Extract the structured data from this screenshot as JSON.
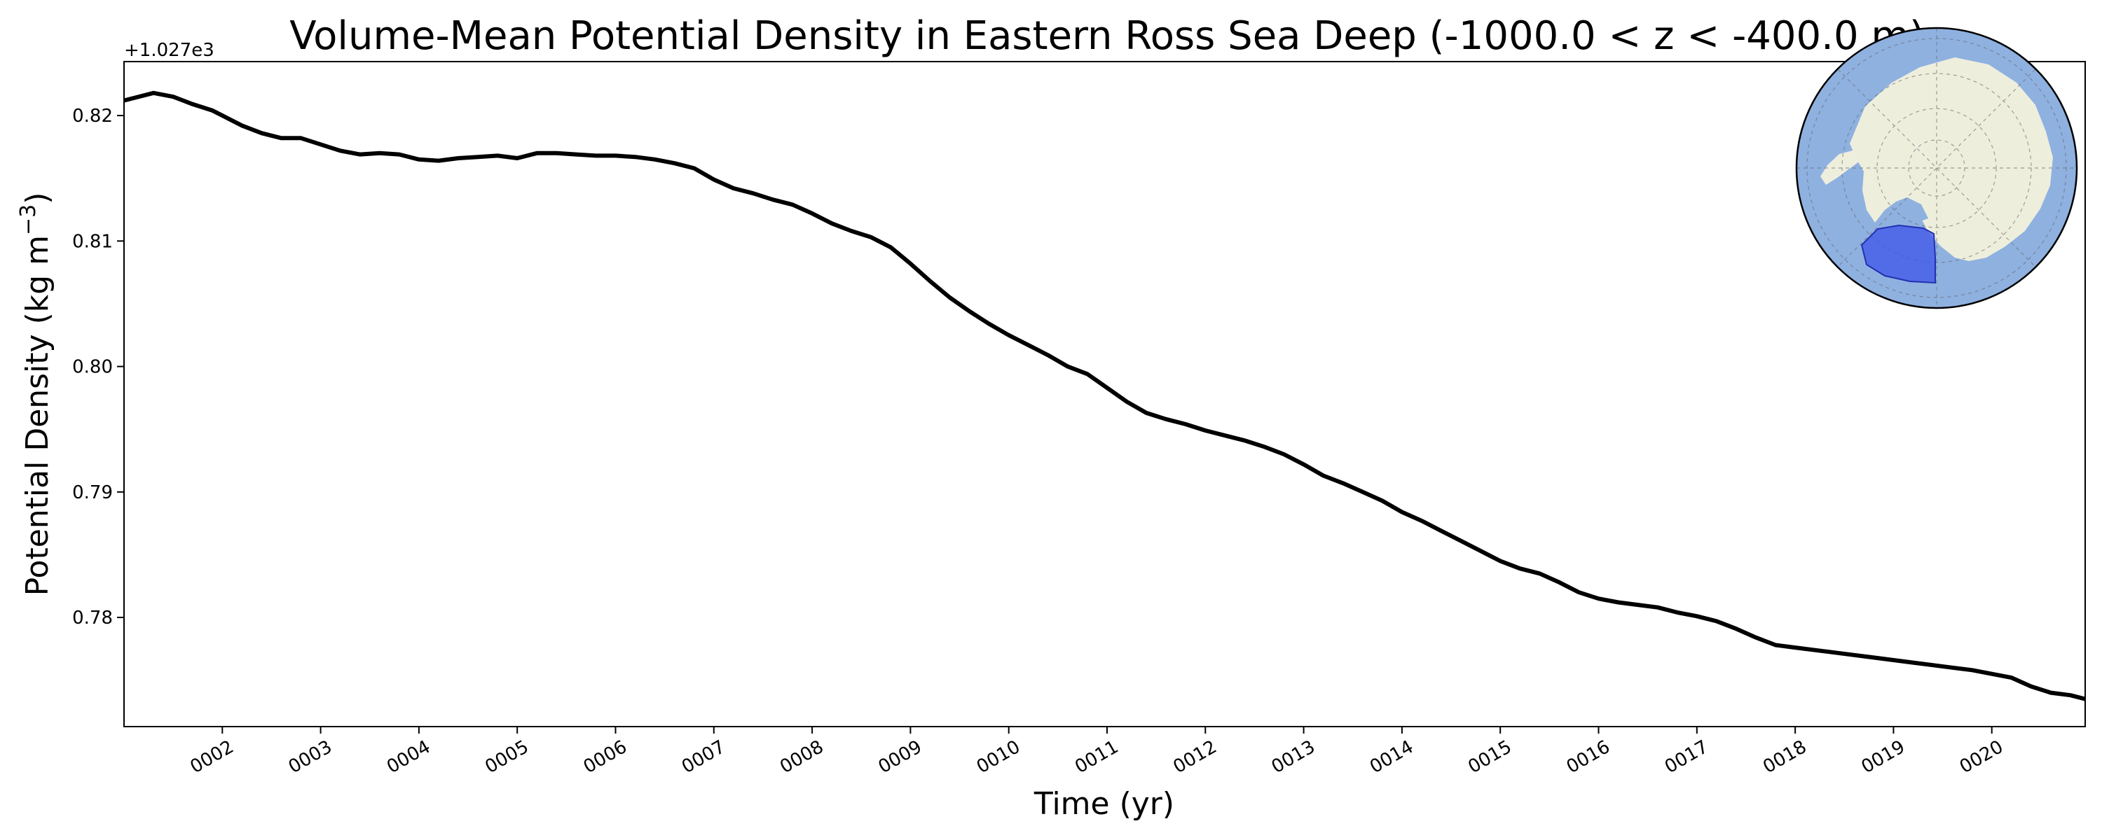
{
  "chart_data": {
    "type": "line",
    "title": "Volume-Mean Potential Density in Eastern Ross Sea Deep (-1000.0 < z < -400.0 m)",
    "xlabel": "Time (yr)",
    "ylabel_main": "Potential Density (kg m",
    "ylabel_exp": "−3",
    "ylabel_close": ")",
    "y_offset_text": "+1.027e3",
    "xlim": [
      1.0,
      20.95
    ],
    "ylim": [
      0.7713,
      0.8243
    ],
    "x_ticks": [
      2,
      3,
      4,
      5,
      6,
      7,
      8,
      9,
      10,
      11,
      12,
      13,
      14,
      15,
      16,
      17,
      18,
      19,
      20
    ],
    "x_tick_labels": [
      "0002",
      "0003",
      "0004",
      "0005",
      "0006",
      "0007",
      "0008",
      "0009",
      "0010",
      "0011",
      "0012",
      "0013",
      "0014",
      "0015",
      "0016",
      "0017",
      "0018",
      "0019",
      "0020"
    ],
    "y_ticks": [
      0.78,
      0.79,
      0.8,
      0.81,
      0.82
    ],
    "y_tick_labels": [
      "0.78",
      "0.79",
      "0.80",
      "0.81",
      "0.82"
    ],
    "grid": false,
    "series": [
      {
        "color": "#000000",
        "x": [
          1.0,
          1.1,
          1.3,
          1.5,
          1.7,
          1.9,
          2.0,
          2.2,
          2.4,
          2.6,
          2.8,
          3.0,
          3.2,
          3.4,
          3.6,
          3.8,
          4.0,
          4.2,
          4.4,
          4.6,
          4.8,
          5.0,
          5.2,
          5.4,
          5.6,
          5.8,
          6.0,
          6.2,
          6.4,
          6.6,
          6.8,
          7.0,
          7.2,
          7.4,
          7.6,
          7.8,
          8.0,
          8.2,
          8.4,
          8.6,
          8.8,
          9.0,
          9.2,
          9.4,
          9.6,
          9.8,
          10.0,
          10.2,
          10.4,
          10.6,
          10.8,
          11.0,
          11.2,
          11.4,
          11.6,
          11.8,
          12.0,
          12.2,
          12.4,
          12.6,
          12.8,
          13.0,
          13.2,
          13.4,
          13.6,
          13.8,
          14.0,
          14.2,
          14.4,
          14.6,
          14.8,
          15.0,
          15.2,
          15.4,
          15.6,
          15.8,
          16.0,
          16.2,
          16.4,
          16.6,
          16.8,
          17.0,
          17.2,
          17.4,
          17.6,
          17.8,
          18.0,
          18.2,
          18.4,
          18.6,
          18.8,
          19.0,
          19.2,
          19.4,
          19.6,
          19.8,
          20.0,
          20.2,
          20.4,
          20.6,
          20.8,
          20.95
        ],
        "y": [
          0.8212,
          0.8214,
          0.8218,
          0.8215,
          0.8209,
          0.8204,
          0.82,
          0.8192,
          0.8186,
          0.8182,
          0.8182,
          0.8177,
          0.8172,
          0.8169,
          0.817,
          0.8169,
          0.8165,
          0.8164,
          0.8166,
          0.8167,
          0.8168,
          0.8166,
          0.817,
          0.817,
          0.8169,
          0.8168,
          0.8168,
          0.8167,
          0.8165,
          0.8162,
          0.8158,
          0.8149,
          0.8142,
          0.8138,
          0.8133,
          0.8129,
          0.8122,
          0.8114,
          0.8108,
          0.8103,
          0.8095,
          0.8082,
          0.8068,
          0.8055,
          0.8044,
          0.8034,
          0.8025,
          0.8017,
          0.8009,
          0.8,
          0.7994,
          0.7983,
          0.7972,
          0.7963,
          0.7958,
          0.7954,
          0.7949,
          0.7945,
          0.7941,
          0.7936,
          0.793,
          0.7922,
          0.7913,
          0.7907,
          0.79,
          0.7893,
          0.7884,
          0.7877,
          0.7869,
          0.7861,
          0.7853,
          0.7845,
          0.7839,
          0.7835,
          0.7828,
          0.782,
          0.7815,
          0.7812,
          0.781,
          0.7808,
          0.7804,
          0.7801,
          0.7797,
          0.7791,
          0.7784,
          0.7778,
          0.7776,
          0.7774,
          0.7772,
          0.777,
          0.7768,
          0.7766,
          0.7764,
          0.7762,
          0.776,
          0.7758,
          0.7755,
          0.7752,
          0.7745,
          0.774,
          0.7738,
          0.7735
        ]
      }
    ],
    "inset_map": {
      "type": "south-polar-stereographic-map",
      "ocean_color": "#8fb1e0",
      "land_color": "#eeeedd",
      "region_color": "#3c55e8",
      "region": "Eastern Ross Sea"
    }
  }
}
